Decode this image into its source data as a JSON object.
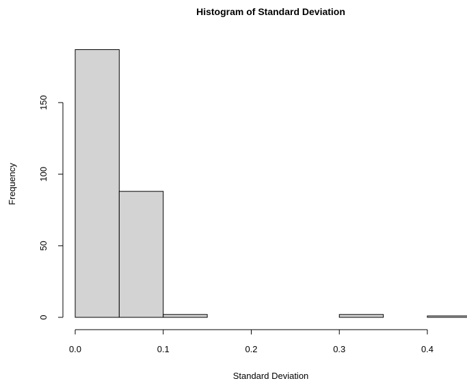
{
  "chart_data": {
    "type": "bar",
    "title": "Histogram of Standard Deviation",
    "xlabel": "Standard Deviation",
    "ylabel": "Frequency",
    "bins": [
      {
        "start": 0.0,
        "end": 0.05,
        "count": 187
      },
      {
        "start": 0.05,
        "end": 0.1,
        "count": 88
      },
      {
        "start": 0.1,
        "end": 0.15,
        "count": 2
      },
      {
        "start": 0.15,
        "end": 0.2,
        "count": 0
      },
      {
        "start": 0.2,
        "end": 0.25,
        "count": 0
      },
      {
        "start": 0.25,
        "end": 0.3,
        "count": 0
      },
      {
        "start": 0.3,
        "end": 0.35,
        "count": 2
      },
      {
        "start": 0.35,
        "end": 0.4,
        "count": 0
      },
      {
        "start": 0.4,
        "end": 0.45,
        "count": 1
      }
    ],
    "xlim": [
      0.0,
      0.45
    ],
    "ylim": [
      0,
      187
    ],
    "x_ticks": [
      0.0,
      0.1,
      0.2,
      0.3,
      0.4
    ],
    "x_tick_labels": [
      "0.0",
      "0.1",
      "0.2",
      "0.3",
      "0.4"
    ],
    "y_ticks": [
      0,
      50,
      100,
      150
    ],
    "y_tick_labels": [
      "0",
      "50",
      "100",
      "150"
    ],
    "bar_fill": "#d3d3d3",
    "bar_stroke": "#000000",
    "grid": false,
    "legend": "none"
  }
}
